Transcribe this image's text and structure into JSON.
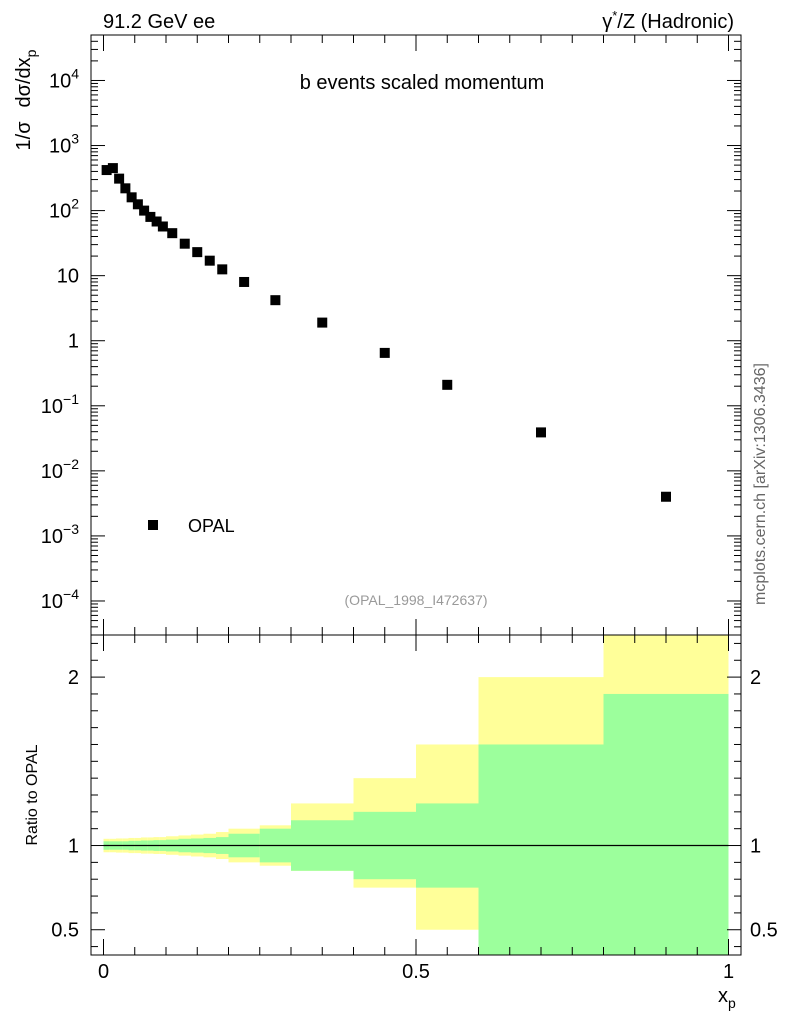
{
  "header": {
    "left": "91.2 GeV ee",
    "right_gamma": "γ",
    "right_star": "*",
    "right_rest": "/Z (Hadronic)"
  },
  "side_label": "mcplots.cern.ch [arXiv:1306.3436]",
  "analysis_label": "(OPAL_1998_I472637)",
  "chart_data": [
    {
      "type": "scatter",
      "title": "b events scaled momentum",
      "xlabel": "x",
      "xlabel_sub": "p",
      "ylabel_parts": [
        "1/σ",
        "dσ/dx",
        "p"
      ],
      "yscale": "log",
      "xlim": [
        -0.02,
        1.02
      ],
      "ylim": [
        3e-05,
        50000
      ],
      "y_ticks": [
        {
          "v": 0.0001,
          "label": "10",
          "exp": "−4"
        },
        {
          "v": 0.001,
          "label": "10",
          "exp": "−3"
        },
        {
          "v": 0.01,
          "label": "10",
          "exp": "−2"
        },
        {
          "v": 0.1,
          "label": "10",
          "exp": "−1"
        },
        {
          "v": 1,
          "label": "1",
          "exp": ""
        },
        {
          "v": 10,
          "label": "10",
          "exp": ""
        },
        {
          "v": 100,
          "label": "10",
          "exp": "2"
        },
        {
          "v": 1000,
          "label": "10",
          "exp": "3"
        },
        {
          "v": 10000,
          "label": "10",
          "exp": "4"
        }
      ],
      "legend": [
        {
          "name": "OPAL",
          "marker": "square",
          "color": "#000000"
        }
      ],
      "series": [
        {
          "name": "OPAL",
          "x": [
            0.005,
            0.015,
            0.025,
            0.035,
            0.045,
            0.055,
            0.065,
            0.075,
            0.085,
            0.095,
            0.11,
            0.13,
            0.15,
            0.17,
            0.19,
            0.225,
            0.275,
            0.35,
            0.45,
            0.55,
            0.7,
            0.9
          ],
          "y": [
            420,
            450,
            310,
            220,
            160,
            125,
            100,
            80,
            68,
            57,
            45,
            31,
            23,
            17,
            12.5,
            8,
            4.2,
            1.9,
            0.65,
            0.21,
            0.039,
            0.004
          ]
        }
      ]
    },
    {
      "type": "area",
      "ylabel": "Ratio to OPAL",
      "ylim": [
        0.35,
        2.25
      ],
      "y_ticks": [
        {
          "v": 0.5,
          "label": "0.5"
        },
        {
          "v": 1,
          "label": "1"
        },
        {
          "v": 2,
          "label": "2"
        }
      ],
      "x_ticks": [
        {
          "v": 0,
          "label": "0"
        },
        {
          "v": 0.5,
          "label": "0.5"
        },
        {
          "v": 1,
          "label": "1"
        }
      ],
      "bins": [
        0,
        0.01,
        0.02,
        0.03,
        0.04,
        0.05,
        0.06,
        0.07,
        0.08,
        0.09,
        0.1,
        0.12,
        0.14,
        0.16,
        0.18,
        0.2,
        0.25,
        0.3,
        0.4,
        0.5,
        0.6,
        0.8,
        1.0
      ],
      "band_inner": {
        "color": "#9cff9c",
        "lo": [
          0.975,
          0.975,
          0.975,
          0.975,
          0.972,
          0.972,
          0.97,
          0.97,
          0.968,
          0.968,
          0.965,
          0.96,
          0.958,
          0.955,
          0.95,
          0.93,
          0.9,
          0.85,
          0.8,
          0.75,
          0.35,
          0.35
        ],
        "hi": [
          1.025,
          1.025,
          1.025,
          1.025,
          1.028,
          1.028,
          1.03,
          1.03,
          1.032,
          1.032,
          1.035,
          1.04,
          1.042,
          1.045,
          1.05,
          1.07,
          1.1,
          1.15,
          1.2,
          1.25,
          1.6,
          1.9
        ]
      },
      "band_outer": {
        "color": "#ffff99",
        "lo": [
          0.96,
          0.96,
          0.958,
          0.958,
          0.955,
          0.955,
          0.952,
          0.952,
          0.95,
          0.95,
          0.945,
          0.94,
          0.935,
          0.93,
          0.92,
          0.9,
          0.88,
          0.85,
          0.75,
          0.5,
          0.45,
          0.35
        ],
        "hi": [
          1.04,
          1.04,
          1.042,
          1.042,
          1.045,
          1.045,
          1.048,
          1.048,
          1.05,
          1.05,
          1.055,
          1.06,
          1.065,
          1.07,
          1.08,
          1.1,
          1.12,
          1.25,
          1.4,
          1.6,
          2.0,
          2.25
        ]
      },
      "reference_line": 1
    }
  ]
}
